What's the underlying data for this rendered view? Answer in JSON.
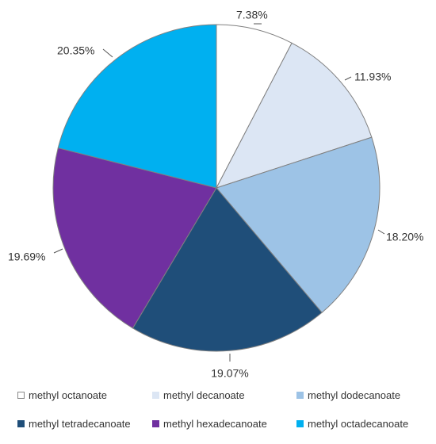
{
  "chart_data": {
    "type": "pie",
    "categories": [
      "methyl octanoate",
      "methyl decanoate",
      "methyl dodecanoate",
      "methyl tetradecanoate",
      "methyl hexadecanoate",
      "methyl octadecanoate"
    ],
    "values": [
      7.38,
      11.93,
      18.2,
      19.07,
      19.69,
      20.35
    ],
    "data_labels": [
      "7.38%",
      "11.93%",
      "18.20%",
      "19.07%",
      "19.69%",
      "20.35%"
    ],
    "colors": [
      "#ffffff",
      "#dce6f4",
      "#9dc3e6",
      "#1f4e79",
      "#7030a0",
      "#00b0f0"
    ],
    "start_angle": "12 o'clock",
    "direction": "clockwise",
    "legend_position": "bottom"
  }
}
